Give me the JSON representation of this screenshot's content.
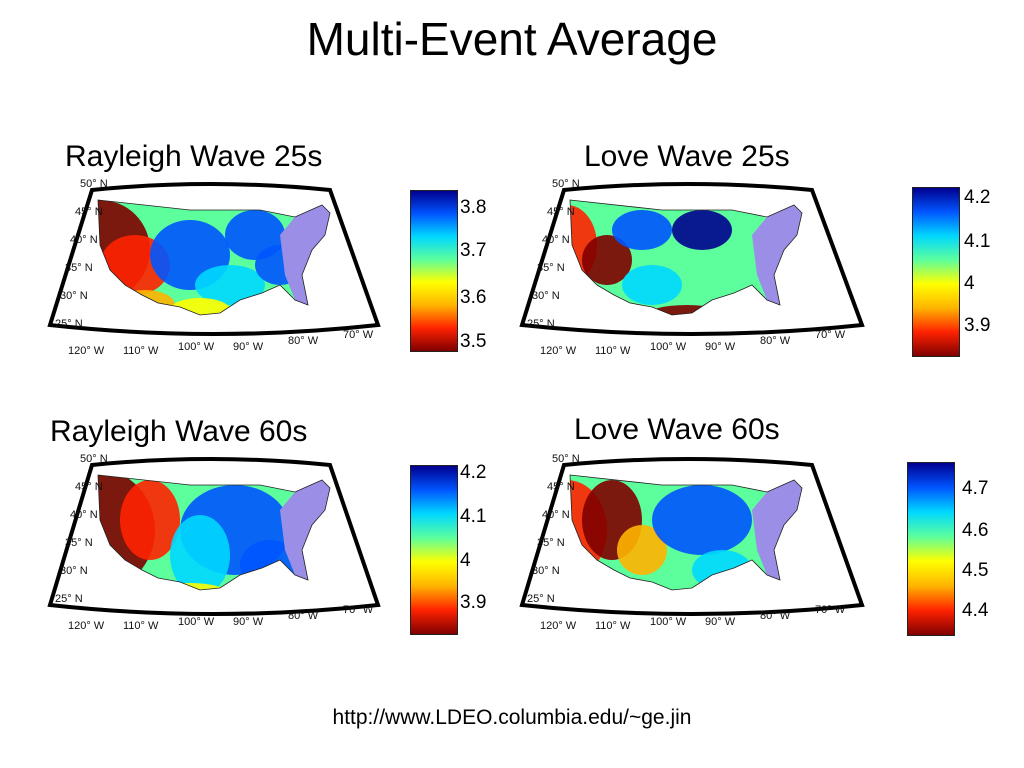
{
  "slide": {
    "title": "Multi-Event Average",
    "footer_url": "http://www.LDEO.columbia.edu/~ge.jin"
  },
  "colors": {
    "frame": "#000000",
    "east_region": "#9b8ee6",
    "scale": [
      "#800000",
      "#ff2200",
      "#ffb400",
      "#ffff00",
      "#5cff9c",
      "#00d8ff",
      "#0055ff",
      "#00008f"
    ]
  },
  "panels": [
    {
      "id": "rayleigh-25",
      "title": "Rayleigh Wave 25s",
      "colorbar_ticks": [
        "3.8",
        "3.7",
        "3.6",
        "3.5"
      ],
      "lat_labels": [
        "50° N",
        "45° N",
        "40° N",
        "35° N",
        "30° N",
        "25° N"
      ],
      "lon_labels": [
        "120° W",
        "110° W",
        "100° W",
        "90° W",
        "80° W",
        "70° W"
      ]
    },
    {
      "id": "love-25",
      "title": "Love Wave 25s",
      "colorbar_ticks": [
        "4.2",
        "4.1",
        "4",
        "3.9"
      ],
      "lat_labels": [
        "50° N",
        "45° N",
        "40° N",
        "35° N",
        "30° N",
        "25° N"
      ],
      "lon_labels": [
        "120° W",
        "110° W",
        "100° W",
        "90° W",
        "80° W",
        "70° W"
      ]
    },
    {
      "id": "rayleigh-60",
      "title": "Rayleigh Wave 60s",
      "colorbar_ticks": [
        "4.2",
        "4.1",
        "4",
        "3.9"
      ],
      "lat_labels": [
        "50° N",
        "45° N",
        "40° N",
        "35° N",
        "30° N",
        "25° N"
      ],
      "lon_labels": [
        "120° W",
        "110° W",
        "100° W",
        "90° W",
        "80° W",
        "70° W"
      ]
    },
    {
      "id": "love-60",
      "title": "Love Wave 60s",
      "colorbar_ticks": [
        "4.7",
        "4.6",
        "4.5",
        "4.4"
      ],
      "lat_labels": [
        "50° N",
        "45° N",
        "40° N",
        "35° N",
        "30° N",
        "25° N"
      ],
      "lon_labels": [
        "120° W",
        "110° W",
        "100° W",
        "90° W",
        "80° W",
        "70° W"
      ]
    }
  ]
}
